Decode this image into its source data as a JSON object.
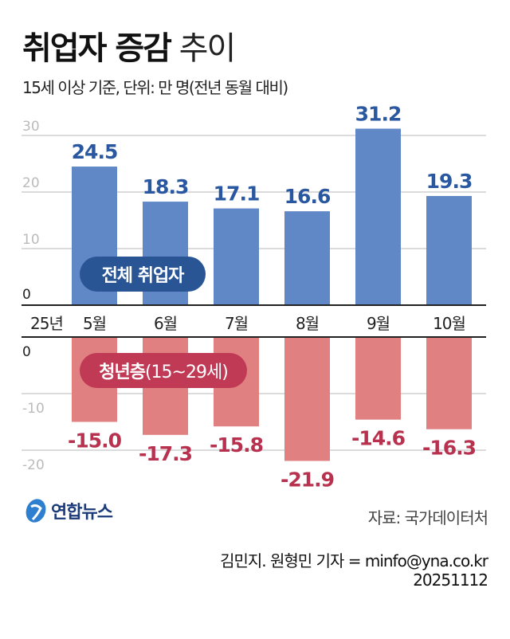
{
  "title_bold": "취업자 증감",
  "title_light": "추이",
  "subtitle": "15세 이상 기준, 단위: 만 명(전년 동월 대비)",
  "chart_data": [
    {
      "type": "bar",
      "series_label_bold": "전체 취업자",
      "categories": [
        "5월",
        "6월",
        "7월",
        "8월",
        "9월",
        "10월"
      ],
      "year_label": "25년",
      "values": [
        24.5,
        18.3,
        17.1,
        16.6,
        31.2,
        19.3
      ],
      "value_labels": [
        "24.5",
        "18.3",
        "17.1",
        "16.6",
        "31.2",
        "19.3"
      ],
      "ylim": [
        0,
        30
      ],
      "yticks": [
        "0",
        "10",
        "20",
        "30"
      ],
      "ytick_values": [
        0,
        10,
        20,
        30
      ],
      "grid": true,
      "bar_color": "#6088c6",
      "label_color": "#2a58a0",
      "pill_color": "#2a5595"
    },
    {
      "type": "bar",
      "series_label_bold": "청년층",
      "series_label_light": "(15~29세)",
      "categories": [
        "5월",
        "6월",
        "7월",
        "8월",
        "9월",
        "10월"
      ],
      "values": [
        -15.0,
        -17.3,
        -15.8,
        -21.9,
        -14.6,
        -16.3
      ],
      "value_labels": [
        "-15.0",
        "-17.3",
        "-15.8",
        "-21.9",
        "-14.6",
        "-16.3"
      ],
      "ylim": [
        -20,
        0
      ],
      "yticks": [
        "0",
        "-10",
        "-20"
      ],
      "ytick_values": [
        0,
        -10,
        -20
      ],
      "grid": true,
      "bar_color": "#e08080",
      "label_color": "#b8324f",
      "pill_color": "#c03a56"
    }
  ],
  "logo_text": "연합뉴스",
  "source": "자료: 국가데이터처",
  "credit": "김민지. 원형민 기자 = minfo@yna.co.kr",
  "date": "20251112"
}
